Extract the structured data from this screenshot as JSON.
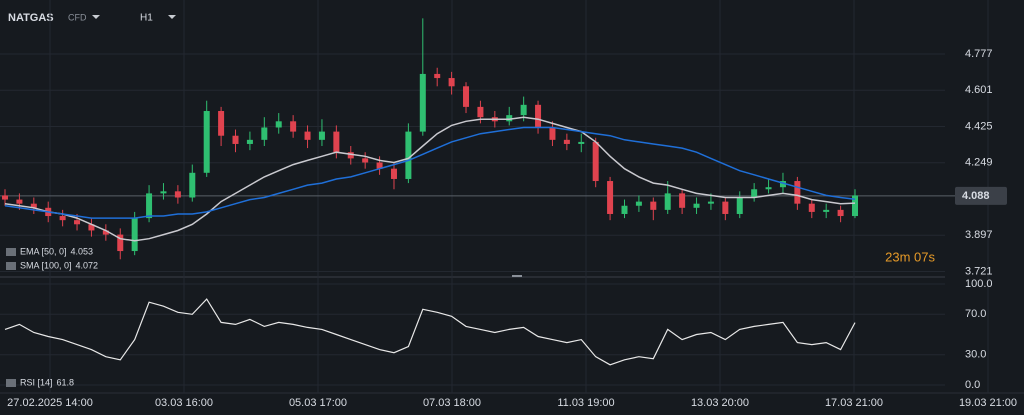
{
  "chart_data": {
    "type": "candlestick",
    "symbol": "NATGAS",
    "instrument": "CFD",
    "timeframe": "H1",
    "countdown": "23m 07s",
    "x_labels": [
      "27.02.2025 14:00",
      "03.03 16:00",
      "05.03 17:00",
      "07.03 18:00",
      "11.03 19:00",
      "13.03 20:00",
      "17.03 21:00",
      "19.03 21:00"
    ],
    "ylim": [
      3.694,
      5.039
    ],
    "yticks": [
      4.777,
      4.601,
      4.425,
      4.249,
      3.897,
      3.721
    ],
    "current_price": 4.088,
    "up_color": "#2fbf71",
    "down_color": "#e0434f",
    "open": [
      4.09,
      4.07,
      4.05,
      4.03,
      3.99,
      3.97,
      3.95,
      3.92,
      3.9,
      3.82,
      3.98,
      4.1,
      4.11,
      4.08,
      4.2,
      4.5,
      4.38,
      4.34,
      4.36,
      4.42,
      4.45,
      4.4,
      4.36,
      4.4,
      4.3,
      4.27,
      4.25,
      4.22,
      4.17,
      4.4,
      4.68,
      4.66,
      4.62,
      4.52,
      4.47,
      4.45,
      4.48,
      4.53,
      4.42,
      4.36,
      4.34,
      4.35,
      4.16,
      4.0,
      4.04,
      4.06,
      4.02,
      4.1,
      4.03,
      4.05,
      4.06,
      4.0,
      4.08,
      4.12,
      4.13,
      4.16,
      4.05,
      4.01,
      4.02,
      3.99
    ],
    "high": [
      4.12,
      4.1,
      4.08,
      4.06,
      4.02,
      4.0,
      3.98,
      3.95,
      3.93,
      4.01,
      4.14,
      4.15,
      4.14,
      4.24,
      4.55,
      4.52,
      4.41,
      4.4,
      4.47,
      4.49,
      4.48,
      4.43,
      4.46,
      4.43,
      4.33,
      4.3,
      4.28,
      4.25,
      4.44,
      4.95,
      4.71,
      4.69,
      4.64,
      4.55,
      4.5,
      4.52,
      4.57,
      4.55,
      4.45,
      4.39,
      4.39,
      4.37,
      4.18,
      4.07,
      4.09,
      4.08,
      4.16,
      4.12,
      4.08,
      4.1,
      4.08,
      4.11,
      4.15,
      4.17,
      4.2,
      4.18,
      4.07,
      4.05,
      4.04,
      4.12
    ],
    "low": [
      4.04,
      4.02,
      4.0,
      3.96,
      3.94,
      3.92,
      3.89,
      3.87,
      3.78,
      3.8,
      3.96,
      4.07,
      4.05,
      4.06,
      4.18,
      4.33,
      4.3,
      4.31,
      4.33,
      4.39,
      4.37,
      4.32,
      4.33,
      4.27,
      4.24,
      4.22,
      4.19,
      4.12,
      4.15,
      4.38,
      4.62,
      4.58,
      4.49,
      4.44,
      4.42,
      4.43,
      4.45,
      4.39,
      4.33,
      4.31,
      4.3,
      4.13,
      3.97,
      3.98,
      4.01,
      3.97,
      4.0,
      4.0,
      4.0,
      4.02,
      3.97,
      3.98,
      4.06,
      4.1,
      4.1,
      4.02,
      3.98,
      3.98,
      3.96,
      3.98
    ],
    "close": [
      4.07,
      4.05,
      4.03,
      3.99,
      3.97,
      3.95,
      3.92,
      3.9,
      3.82,
      3.98,
      4.1,
      4.11,
      4.08,
      4.2,
      4.5,
      4.38,
      4.34,
      4.36,
      4.42,
      4.45,
      4.4,
      4.36,
      4.4,
      4.3,
      4.27,
      4.25,
      4.22,
      4.17,
      4.4,
      4.68,
      4.66,
      4.62,
      4.52,
      4.47,
      4.45,
      4.48,
      4.53,
      4.42,
      4.36,
      4.34,
      4.35,
      4.16,
      4.0,
      4.04,
      4.06,
      4.02,
      4.1,
      4.03,
      4.05,
      4.06,
      4.0,
      4.08,
      4.12,
      4.13,
      4.16,
      4.05,
      4.01,
      4.02,
      3.99,
      4.09
    ],
    "series": [
      {
        "name": "EMA [50, 0]",
        "color": "#c9c9cf",
        "last": 4.053,
        "values": [
          4.05,
          4.04,
          4.03,
          4.01,
          4.0,
          3.98,
          3.95,
          3.92,
          3.88,
          3.87,
          3.88,
          3.9,
          3.92,
          3.95,
          4.0,
          4.06,
          4.1,
          4.14,
          4.18,
          4.21,
          4.24,
          4.26,
          4.28,
          4.3,
          4.29,
          4.28,
          4.26,
          4.25,
          4.27,
          4.33,
          4.39,
          4.43,
          4.45,
          4.46,
          4.46,
          4.46,
          4.47,
          4.46,
          4.44,
          4.42,
          4.4,
          4.35,
          4.28,
          4.22,
          4.18,
          4.15,
          4.14,
          4.12,
          4.1,
          4.09,
          4.08,
          4.08,
          4.08,
          4.09,
          4.1,
          4.09,
          4.07,
          4.06,
          4.05,
          4.053
        ]
      },
      {
        "name": "SMA [100, 0]",
        "color": "#1f6fd8",
        "last": 4.072,
        "values": [
          4.04,
          4.03,
          4.02,
          4.01,
          4.0,
          3.99,
          3.98,
          3.98,
          3.98,
          3.98,
          3.99,
          3.99,
          4.0,
          4.0,
          4.01,
          4.03,
          4.05,
          4.07,
          4.08,
          4.1,
          4.12,
          4.14,
          4.15,
          4.17,
          4.18,
          4.2,
          4.22,
          4.24,
          4.26,
          4.29,
          4.32,
          4.35,
          4.37,
          4.39,
          4.4,
          4.41,
          4.42,
          4.42,
          4.42,
          4.41,
          4.4,
          4.39,
          4.38,
          4.36,
          4.35,
          4.34,
          4.33,
          4.32,
          4.3,
          4.27,
          4.24,
          4.21,
          4.19,
          4.17,
          4.15,
          4.13,
          4.11,
          4.09,
          4.08,
          4.072
        ]
      }
    ],
    "rsi": {
      "name": "RSI [14]",
      "last": 61.8,
      "color": "#e8e8e8",
      "ylim": [
        0,
        100
      ],
      "yticks": [
        {
          "value": 100,
          "label": "100.0"
        },
        {
          "value": 70,
          "label": "70.0"
        },
        {
          "value": 30,
          "label": "30.0"
        },
        {
          "value": 0,
          "label": "0.0"
        }
      ],
      "values": [
        55,
        60,
        52,
        48,
        45,
        40,
        35,
        28,
        25,
        45,
        82,
        78,
        72,
        70,
        85,
        62,
        60,
        65,
        58,
        62,
        60,
        57,
        55,
        50,
        45,
        40,
        35,
        32,
        38,
        75,
        72,
        68,
        58,
        55,
        52,
        55,
        57,
        48,
        45,
        42,
        45,
        28,
        20,
        25,
        28,
        26,
        55,
        45,
        50,
        52,
        45,
        55,
        58,
        60,
        62,
        42,
        40,
        42,
        35,
        61.8
      ]
    }
  }
}
